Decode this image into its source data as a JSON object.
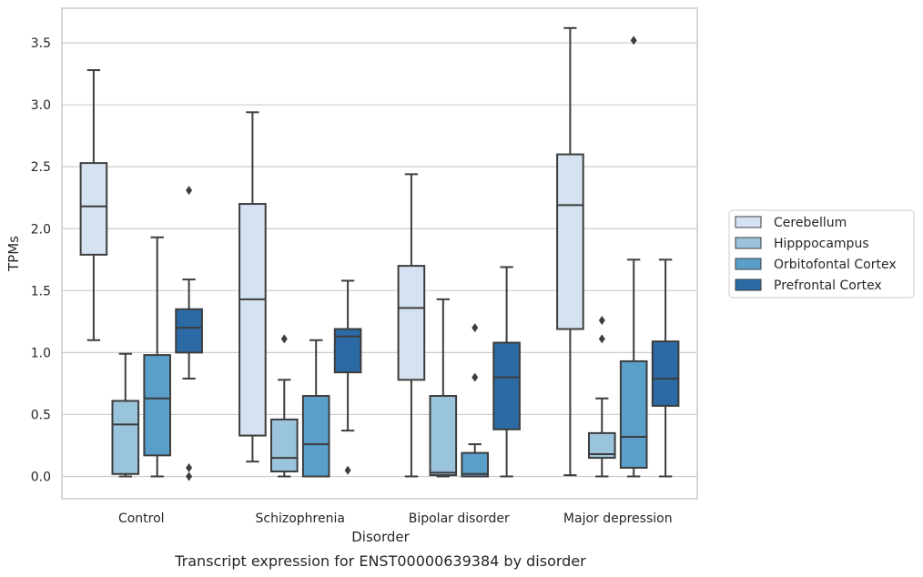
{
  "chart_data": {
    "type": "box",
    "title": "",
    "caption": "Transcript expression for ENST00000639384 by disorder",
    "xlabel": "Disorder",
    "ylabel": "TPMs",
    "ylim": [
      -0.18,
      3.78
    ],
    "yticks": [
      "0.0",
      "0.5",
      "1.0",
      "1.5",
      "2.0",
      "2.5",
      "3.0",
      "3.5"
    ],
    "grid": true,
    "legend_position": "right",
    "categories": [
      "Control",
      "Schizophrenia",
      "Bipolar disorder",
      "Major depression"
    ],
    "series": [
      {
        "name": "Cerebellum",
        "color": "#d4e2f1",
        "boxes": [
          {
            "whisker_low": 1.1,
            "q1": 1.79,
            "median": 2.18,
            "q3": 2.53,
            "whisker_high": 3.28,
            "outliers": []
          },
          {
            "whisker_low": 0.12,
            "q1": 0.33,
            "median": 1.43,
            "q3": 2.2,
            "whisker_high": 2.94,
            "outliers": []
          },
          {
            "whisker_low": 0.0,
            "q1": 0.78,
            "median": 1.36,
            "q3": 1.7,
            "whisker_high": 2.44,
            "outliers": []
          },
          {
            "whisker_low": 0.01,
            "q1": 1.19,
            "median": 2.19,
            "q3": 2.6,
            "whisker_high": 3.62,
            "outliers": []
          }
        ]
      },
      {
        "name": "Hipppocampus",
        "color": "#9ac3dc",
        "boxes": [
          {
            "whisker_low": 0.0,
            "q1": 0.02,
            "median": 0.42,
            "q3": 0.61,
            "whisker_high": 0.99,
            "outliers": []
          },
          {
            "whisker_low": 0.0,
            "q1": 0.04,
            "median": 0.15,
            "q3": 0.46,
            "whisker_high": 0.78,
            "outliers": [
              1.11
            ]
          },
          {
            "whisker_low": 0.0,
            "q1": 0.01,
            "median": 0.03,
            "q3": 0.65,
            "whisker_high": 1.43,
            "outliers": []
          },
          {
            "whisker_low": 0.0,
            "q1": 0.15,
            "median": 0.18,
            "q3": 0.35,
            "whisker_high": 0.63,
            "outliers": [
              1.11,
              1.26
            ]
          }
        ]
      },
      {
        "name": "Orbitofontal Cortex",
        "color": "#5a9fca",
        "boxes": [
          {
            "whisker_low": 0.0,
            "q1": 0.17,
            "median": 0.63,
            "q3": 0.98,
            "whisker_high": 1.93,
            "outliers": []
          },
          {
            "whisker_low": 0.0,
            "q1": 0.0,
            "median": 0.26,
            "q3": 0.65,
            "whisker_high": 1.1,
            "outliers": []
          },
          {
            "whisker_low": 0.0,
            "q1": 0.0,
            "median": 0.02,
            "q3": 0.19,
            "whisker_high": 0.26,
            "outliers": [
              0.8,
              1.2
            ]
          },
          {
            "whisker_low": 0.0,
            "q1": 0.07,
            "median": 0.32,
            "q3": 0.93,
            "whisker_high": 1.75,
            "outliers": [
              3.52
            ]
          }
        ]
      },
      {
        "name": "Prefrontal Cortex",
        "color": "#2b6aa5",
        "boxes": [
          {
            "whisker_low": 0.79,
            "q1": 1.0,
            "median": 1.2,
            "q3": 1.35,
            "whisker_high": 1.59,
            "outliers": [
              2.31,
              0.07,
              0.0
            ]
          },
          {
            "whisker_low": 0.37,
            "q1": 0.84,
            "median": 1.13,
            "q3": 1.19,
            "whisker_high": 1.58,
            "outliers": [
              0.05
            ]
          },
          {
            "whisker_low": 0.0,
            "q1": 0.38,
            "median": 0.8,
            "q3": 1.08,
            "whisker_high": 1.69,
            "outliers": []
          },
          {
            "whisker_low": 0.0,
            "q1": 0.57,
            "median": 0.79,
            "q3": 1.09,
            "whisker_high": 1.75,
            "outliers": []
          }
        ]
      }
    ]
  }
}
